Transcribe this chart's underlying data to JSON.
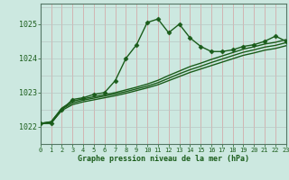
{
  "title": "Graphe pression niveau de la mer (hPa)",
  "bg_color": "#cce8e0",
  "line_color": "#1a5c1a",
  "ylim": [
    1021.5,
    1025.6
  ],
  "yticks": [
    1022,
    1023,
    1024,
    1025
  ],
  "xlim": [
    0,
    23
  ],
  "xticks": [
    0,
    1,
    2,
    3,
    4,
    5,
    6,
    7,
    8,
    9,
    10,
    11,
    12,
    13,
    14,
    15,
    16,
    17,
    18,
    19,
    20,
    21,
    22,
    23
  ],
  "series_main": [
    1022.1,
    1022.1,
    1022.5,
    1022.8,
    1022.85,
    1022.95,
    1023.0,
    1023.35,
    1024.0,
    1024.4,
    1025.05,
    1025.15,
    1024.75,
    1025.0,
    1024.6,
    1024.35,
    1024.2,
    1024.2,
    1024.25,
    1024.35,
    1024.4,
    1024.5,
    1024.65,
    1024.5
  ],
  "series_trend1": [
    1022.1,
    1022.15,
    1022.55,
    1022.75,
    1022.82,
    1022.88,
    1022.94,
    1023.0,
    1023.08,
    1023.16,
    1023.25,
    1023.36,
    1023.5,
    1023.63,
    1023.76,
    1023.86,
    1023.97,
    1024.07,
    1024.17,
    1024.27,
    1024.34,
    1024.42,
    1024.47,
    1024.55
  ],
  "series_trend2": [
    1022.1,
    1022.15,
    1022.52,
    1022.7,
    1022.78,
    1022.84,
    1022.9,
    1022.96,
    1023.03,
    1023.11,
    1023.19,
    1023.29,
    1023.42,
    1023.55,
    1023.67,
    1023.77,
    1023.88,
    1023.98,
    1024.08,
    1024.18,
    1024.25,
    1024.33,
    1024.38,
    1024.46
  ],
  "series_trend3": [
    1022.1,
    1022.12,
    1022.48,
    1022.65,
    1022.73,
    1022.79,
    1022.85,
    1022.91,
    1022.98,
    1023.06,
    1023.14,
    1023.23,
    1023.35,
    1023.47,
    1023.59,
    1023.69,
    1023.79,
    1023.89,
    1023.99,
    1024.09,
    1024.16,
    1024.24,
    1024.29,
    1024.37
  ],
  "grid_v_color": "#d4a0a0",
  "grid_h_color": "#b8c8c4",
  "marker": "D",
  "markersize": 2.5,
  "linewidth_main": 1.0,
  "linewidth_trend": 1.0
}
